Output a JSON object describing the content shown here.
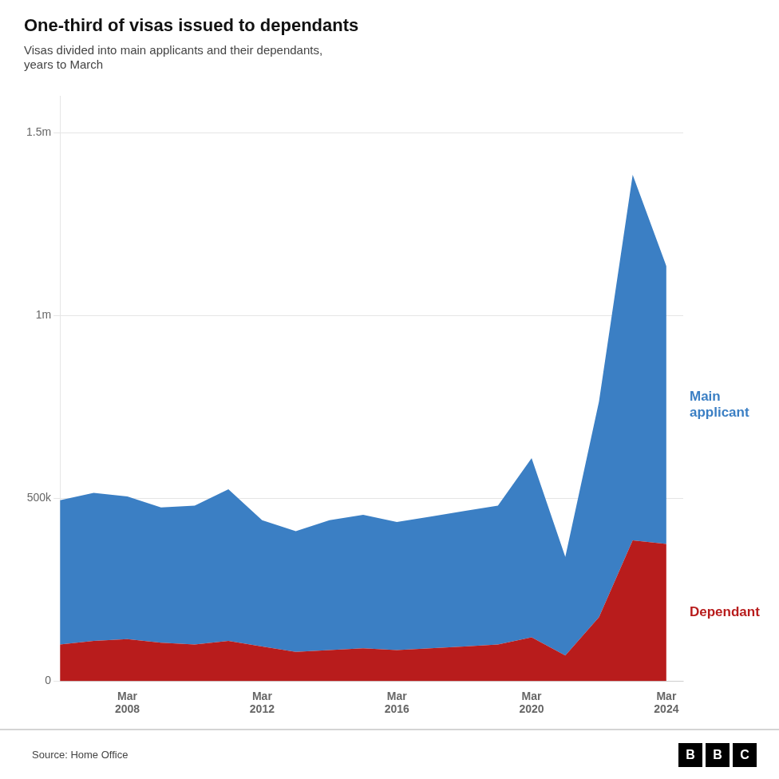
{
  "chart_data": {
    "type": "area",
    "title": "One-third of visas issued to dependants",
    "subtitle": "Visas divided into main applicants and their dependants,\nyears to March",
    "source": "Source: Home Office",
    "logo": "BBC",
    "stacked": true,
    "grid": true,
    "x": [
      2006,
      2007,
      2008,
      2009,
      2010,
      2011,
      2012,
      2013,
      2014,
      2015,
      2016,
      2017,
      2018,
      2019,
      2020,
      2021,
      2022,
      2023,
      2024
    ],
    "series": [
      {
        "name": "Dependant",
        "color": "#b81c1c",
        "values": [
          100000,
          110000,
          115000,
          105000,
          100000,
          110000,
          95000,
          80000,
          85000,
          90000,
          85000,
          90000,
          95000,
          100000,
          120000,
          70000,
          175000,
          385000,
          375000
        ]
      },
      {
        "name": "Main\napplicant",
        "color": "#3b7fc4",
        "values": [
          395000,
          405000,
          390000,
          370000,
          380000,
          415000,
          345000,
          330000,
          355000,
          365000,
          350000,
          360000,
          370000,
          380000,
          490000,
          270000,
          590000,
          1000000,
          760000
        ]
      }
    ],
    "xlim": [
      2006,
      2024.5
    ],
    "xticks": [
      {
        "value": 2008,
        "label": "Mar\n2008"
      },
      {
        "value": 2012,
        "label": "Mar\n2012"
      },
      {
        "value": 2016,
        "label": "Mar\n2016"
      },
      {
        "value": 2020,
        "label": "Mar\n2020"
      },
      {
        "value": 2024,
        "label": "Mar\n2024"
      }
    ],
    "ylim": [
      0,
      1600000
    ],
    "yticks": [
      0,
      {
        "value": 500000,
        "label": "500k"
      },
      {
        "value": 1000000,
        "label": "1m"
      },
      {
        "value": 1500000,
        "label": "1.5m"
      }
    ]
  }
}
